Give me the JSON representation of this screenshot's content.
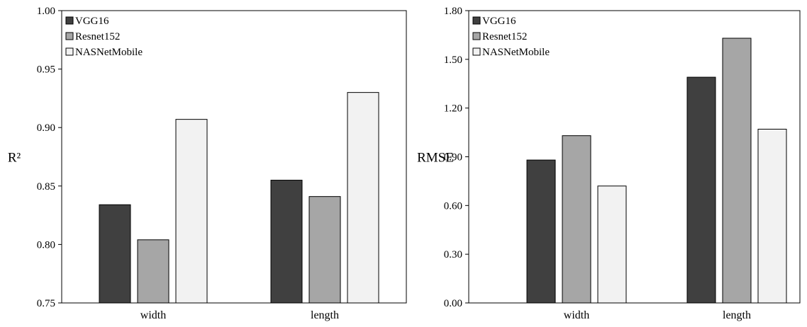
{
  "chart_data": [
    {
      "type": "bar",
      "categories": [
        "width",
        "length"
      ],
      "series": [
        {
          "name": "VGG16",
          "values": [
            0.834,
            0.855
          ],
          "color": "#404040"
        },
        {
          "name": "Resnet152",
          "values": [
            0.804,
            0.841
          ],
          "color": "#a6a6a6"
        },
        {
          "name": "NASNetMobile",
          "values": [
            0.907,
            0.93
          ],
          "color": "#f2f2f2"
        }
      ],
      "ylabel": "R²",
      "ylim": [
        0.75,
        1.0
      ],
      "yticks": [
        "0.75",
        "0.80",
        "0.85",
        "0.90",
        "0.95",
        "1.00"
      ],
      "legend": "top-left",
      "grid": false
    },
    {
      "type": "bar",
      "categories": [
        "width",
        "length"
      ],
      "series": [
        {
          "name": "VGG16",
          "values": [
            0.88,
            1.39
          ],
          "color": "#404040"
        },
        {
          "name": "Resnet152",
          "values": [
            1.03,
            1.63
          ],
          "color": "#a6a6a6"
        },
        {
          "name": "NASNetMobile",
          "values": [
            0.72,
            1.07
          ],
          "color": "#f2f2f2"
        }
      ],
      "ylabel": "RMSE",
      "ylim": [
        0.0,
        1.8
      ],
      "yticks": [
        "0.00",
        "0.30",
        "0.60",
        "0.90",
        "1.20",
        "1.50",
        "1.80"
      ],
      "legend": "top-left",
      "grid": false
    }
  ]
}
